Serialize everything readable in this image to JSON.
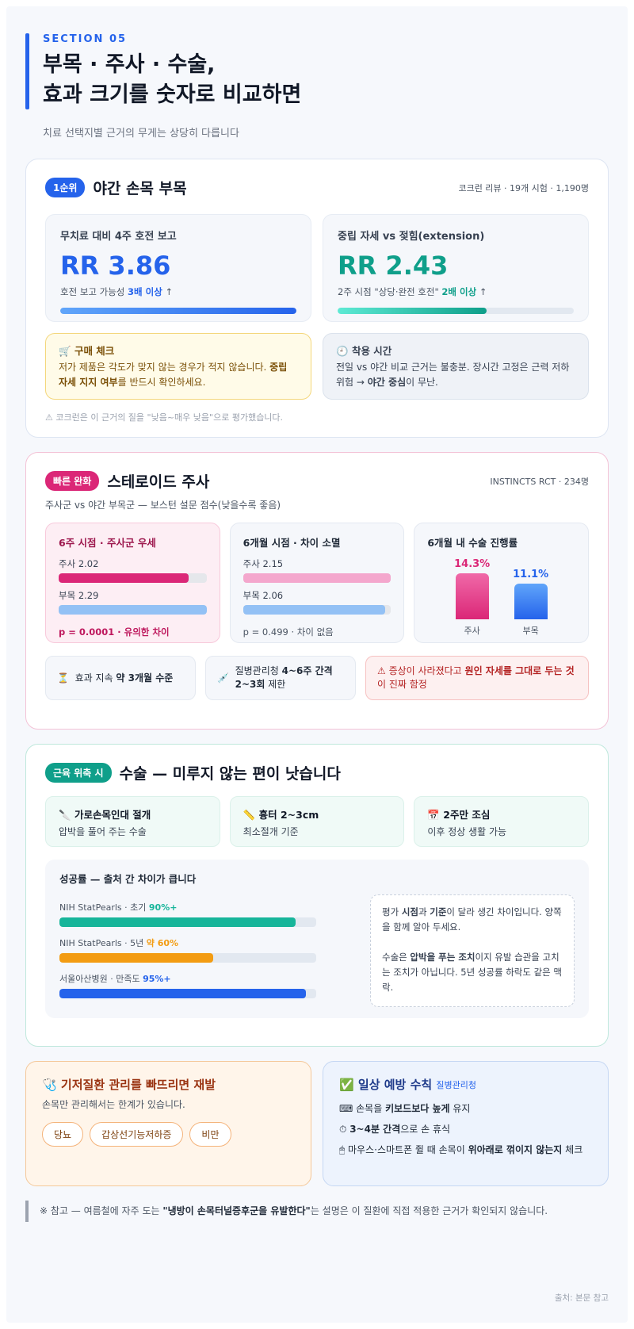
{
  "header": {
    "eyebrow": "SECTION 05",
    "title_line1": "부목 · 주사 · 수술,",
    "title_line2": "효과 크기를 숫자로 비교하면",
    "subtitle": "치료 선택지별 근거의 무게는 상당히 다릅니다"
  },
  "splint": {
    "pill": "1순위",
    "title": "야간 손목 부목",
    "meta": "코크런 리뷰 · 19개 시험 · 1,190명",
    "stat1": {
      "label": "무치료 대비 4주 호전 보고",
      "value": "RR 3.86",
      "desc_pre": "호전 보고 가능성 ",
      "desc_bold": "3배 이상",
      "desc_post": " ↑",
      "fill": 1.0,
      "color": "#2563eb"
    },
    "stat2": {
      "label": "중립 자세 vs 젖힘(extension)",
      "value": "RR 2.43",
      "desc_pre": "2주 시점 \"상당·완전 호전\" ",
      "desc_bold": "2배 이상",
      "desc_post": " ↑",
      "fill": 0.63,
      "color": "#0f9f8a"
    },
    "note1": {
      "icon": "🛒",
      "title": "구매 체크",
      "text_pre": "저가 제품은 각도가 맞지 않는 경우가 적지 않습니다. ",
      "text_bold": "중립 자세 지지 여부",
      "text_post": "를 반드시 확인하세요."
    },
    "note2": {
      "icon": "🕘",
      "title": "착용 시간",
      "text_pre": "전일 vs 야간 비교 근거는 불충분. 장시간 고정은 근력 저하 위험 → ",
      "text_bold": "야간 중심",
      "text_post": "이 무난."
    },
    "footnote": "⚠ 코크런은 이 근거의 질을 \"낮음~매우 낮음\"으로 평가했습니다."
  },
  "steroid": {
    "pill": "빠른 완화",
    "title": "스테로이드 주사",
    "meta": "INSTINCTS RCT · 234명",
    "subtitle": "주사군 vs 야간 부목군 — 보스턴 설문 점수(낮을수록 좋음)",
    "box1": {
      "title": "6주 시점 · 주사군 우세",
      "a_label": "주사 2.02",
      "a_fill": 0.88,
      "b_label": "부목 2.29",
      "b_fill": 1.0,
      "p": "p = 0.0001 · 유의한 차이"
    },
    "box2": {
      "title": "6개월 시점 · 차이 소멸",
      "a_label": "주사 2.15",
      "a_fill": 1.0,
      "b_label": "부목 2.06",
      "b_fill": 0.96,
      "p": "p = 0.499 · 차이 없음"
    },
    "box3": {
      "title": "6개월 내 수술 진행률",
      "a_pct": "14.3%",
      "a_value": 14.3,
      "a_label": "주사",
      "b_pct": "11.1%",
      "b_value": 11.1,
      "b_label": "부목"
    },
    "chip1_icon": "⏳",
    "chip1_pre": "효과 지속 ",
    "chip1_bold": "약 3개월 수준",
    "chip2_icon": "💉",
    "chip2_pre": "질병관리청 ",
    "chip2_bold": "4~6주 간격 2~3회",
    "chip2_post": " 제한",
    "chip3_pre": "⚠ 증상이 사라졌다고 ",
    "chip3_bold": "원인 자세를 그대로 두는 것",
    "chip3_post": "이 진짜 함정"
  },
  "surgery": {
    "pill": "근육 위축 시",
    "title": "수술 — 미루지 않는 편이 낫습니다",
    "m1_icon": "🔪",
    "m1_title": "가로손목인대 절개",
    "m1_text": "압박을 풀어 주는 수술",
    "m2_icon": "📏",
    "m2_title": "흉터 2~3cm",
    "m2_text": "최소절개 기준",
    "m3_icon": "📅",
    "m3_title": "2주만 조심",
    "m3_text": "이후 정상 생활 가능",
    "succ_title": "성공률 — 출처 간 차이가 큽니다",
    "rows": [
      {
        "label": "NIH StatPearls · 초기 ",
        "value_text": "90%+",
        "fill": 0.92,
        "color": "#17b59a"
      },
      {
        "label": "NIH StatPearls · 5년 ",
        "value_text": "약 60%",
        "fill": 0.6,
        "color": "#f39c12"
      },
      {
        "label": "서울아산병원 · 만족도 ",
        "value_text": "95%+",
        "fill": 0.96,
        "color": "#2563eb"
      }
    ],
    "note_p1_pre": "평가 ",
    "note_p1_bold1": "시점",
    "note_p1_mid": "과 ",
    "note_p1_bold2": "기준",
    "note_p1_post": "이 달라 생긴 차이입니다. 양쪽을 함께 알아 두세요.",
    "note_p2_pre": "수술은 ",
    "note_p2_bold1": "압박을 푸는 조치",
    "note_p2_post": "이지 유발 습관을 고치는 조치가 아닙니다. 5년 성공률 하락도 같은 맥락."
  },
  "disease": {
    "icon": "🩺",
    "title": "기저질환 관리를 빠뜨리면 재발",
    "sub": "손목만 관리해서는 한계가 있습니다.",
    "tags": [
      "당뇨",
      "갑상선기능저하증",
      "비만"
    ]
  },
  "prevent": {
    "icon": "✅",
    "title": "일상 예방 수칙",
    "title_small": "질병관리청",
    "tip1_icon": "⌨",
    "tip1_pre": " 손목을 ",
    "tip1_bold": "키보드보다 높게",
    "tip1_post": " 유지",
    "tip2_icon": "⏱",
    "tip2_bold": "3~4분 간격",
    "tip2_post": "으로 손 휴식",
    "tip3_icon": "🖱",
    "tip3_pre": " 마우스·스마트폰 쥘 때 손목이 ",
    "tip3_bold": "위아래로 꺾이지 않는지",
    "tip3_post": " 체크"
  },
  "reference": {
    "pre": "※ 참고 — 여름철에 자주 도는 ",
    "bold": "\"냉방이 손목터널증후군을 유발한다\"",
    "post": "는 설명은 이 질환에 직접 적용한 근거가 확인되지 않습니다."
  },
  "source": "출처: 본문 참고"
}
